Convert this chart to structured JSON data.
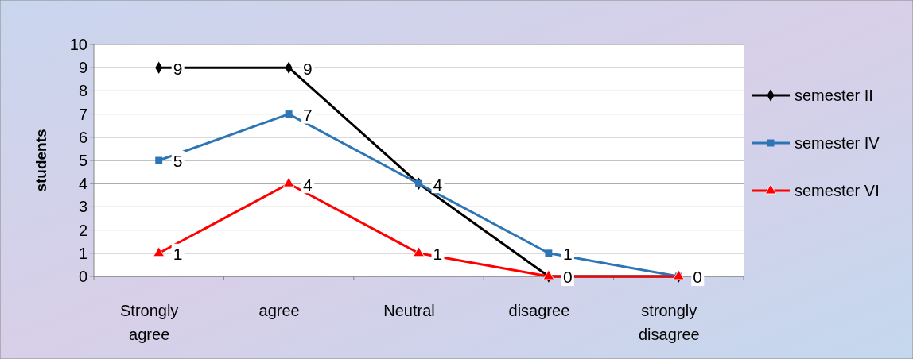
{
  "chart_data": {
    "type": "line",
    "ylabel": "students",
    "categories": [
      "Strongly agree",
      "agree",
      "Neutral",
      "disagree",
      "strongly disagree"
    ],
    "series": [
      {
        "name": "semester II",
        "color": "#000000",
        "marker": "diamond",
        "values": [
          9,
          9,
          4,
          0,
          0
        ],
        "value_labels": [
          "9",
          "9",
          null,
          null,
          null
        ]
      },
      {
        "name": "semester IV",
        "color": "#2e75b6",
        "marker": "square",
        "values": [
          5,
          7,
          4,
          1,
          0
        ],
        "value_labels": [
          "5",
          "7",
          "4",
          "1",
          "0"
        ]
      },
      {
        "name": "semester VI",
        "color": "#ff0000",
        "marker": "triangle",
        "values": [
          1,
          4,
          1,
          0,
          0
        ],
        "value_labels": [
          "1",
          "4",
          "1",
          "0",
          null
        ]
      }
    ],
    "ylim": [
      0,
      10
    ],
    "yticks": [
      0,
      1,
      2,
      3,
      4,
      5,
      6,
      7,
      8,
      9,
      10
    ],
    "grid": "y",
    "legend": "right"
  }
}
